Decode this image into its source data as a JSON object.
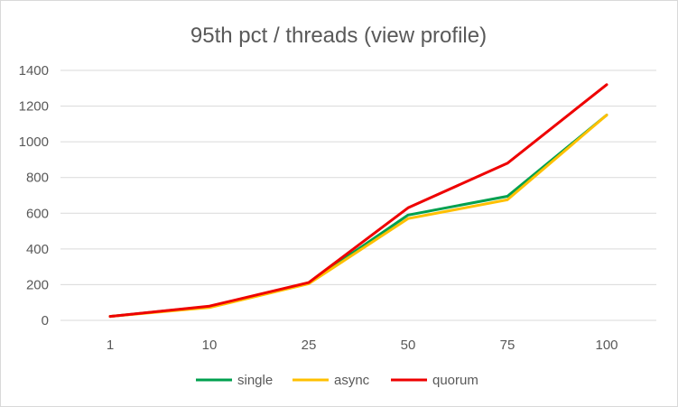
{
  "chart_data": {
    "type": "line",
    "title": "95th pct / threads (view profile)",
    "xlabel": "",
    "ylabel": "",
    "categories": [
      "1",
      "10",
      "25",
      "50",
      "75",
      "100"
    ],
    "ylim": [
      0,
      1400
    ],
    "yticks": [
      "0",
      "200",
      "400",
      "600",
      "800",
      "1000",
      "1200",
      "1400"
    ],
    "grid": true,
    "legend_position": "bottom",
    "series": [
      {
        "name": "single",
        "color": "#00a04f",
        "values": [
          22,
          78,
          210,
          590,
          695,
          1150
        ]
      },
      {
        "name": "async",
        "color": "#ffc000",
        "values": [
          22,
          72,
          205,
          570,
          675,
          1150
        ]
      },
      {
        "name": "quorum",
        "color": "#ee0000",
        "values": [
          22,
          80,
          212,
          630,
          880,
          1320
        ]
      }
    ]
  }
}
